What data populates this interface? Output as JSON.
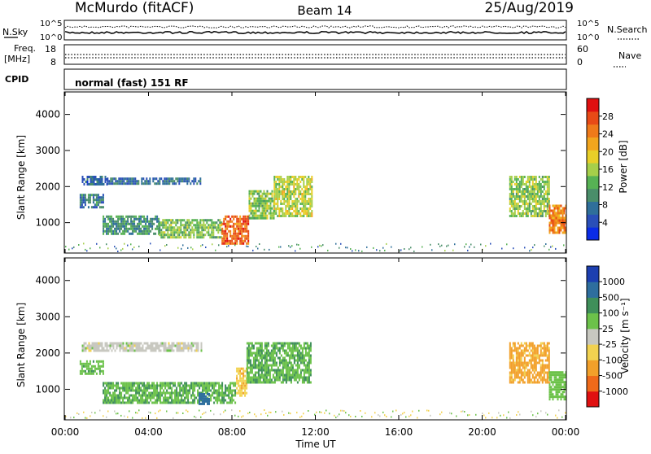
{
  "header": {
    "station": "McMurdo (fitACF)",
    "beam": "Beam 14",
    "date": "25/Aug/2019"
  },
  "noise_panel": {
    "left_label": "N.Sky",
    "right_label": "N.Search",
    "left_ticks": [
      "10^5",
      "10^0"
    ],
    "right_ticks": [
      "10^5",
      "10^0"
    ]
  },
  "freq_panel": {
    "left_label_line1": "Freq.",
    "left_label_line2": "[MHz]",
    "right_label": "Nave",
    "left_ticks": [
      "18",
      "8"
    ],
    "right_ticks": [
      "60",
      "0"
    ]
  },
  "cpid_panel": {
    "label": "CPID",
    "text": "normal (fast) 151 RF"
  },
  "chart_data": [
    {
      "type": "heatmap",
      "ylabel": "Slant Range [km]",
      "xlabel": "",
      "ylim": [
        180,
        4600
      ],
      "yticks": [
        "1000",
        "2000",
        "3000",
        "4000"
      ],
      "colorbar": {
        "label": "Power [dB]",
        "ticks": [
          "4",
          "8",
          "12",
          "16",
          "20",
          "24",
          "28"
        ],
        "colors": [
          "#0a2ce6",
          "#2a4fb8",
          "#2f6f9a",
          "#4a8e6a",
          "#57b254",
          "#a6cf4a",
          "#e8cf28",
          "#f2a51e",
          "#ef7a1a",
          "#e84a16",
          "#e01010"
        ],
        "range": [
          0,
          32
        ]
      },
      "echo_regions": [
        {
          "t_start": 0.8,
          "t_end": 2.0,
          "r_min": 2050,
          "r_max": 2300,
          "value": 6
        },
        {
          "t_start": 2.0,
          "t_end": 6.5,
          "r_min": 2050,
          "r_max": 2250,
          "value": 7
        },
        {
          "t_start": 0.7,
          "t_end": 1.8,
          "r_min": 1450,
          "r_max": 1800,
          "value": 8
        },
        {
          "t_start": 1.8,
          "t_end": 4.5,
          "r_min": 700,
          "r_max": 1200,
          "value": 10
        },
        {
          "t_start": 4.5,
          "t_end": 7.5,
          "r_min": 600,
          "r_max": 1100,
          "value": 14
        },
        {
          "t_start": 7.5,
          "t_end": 8.8,
          "r_min": 450,
          "r_max": 1200,
          "value": 26
        },
        {
          "t_start": 8.8,
          "t_end": 10.0,
          "r_min": 1100,
          "r_max": 1900,
          "value": 15
        },
        {
          "t_start": 10.0,
          "t_end": 11.8,
          "r_min": 1200,
          "r_max": 2300,
          "value": 17
        },
        {
          "t_start": 21.3,
          "t_end": 23.2,
          "r_min": 1200,
          "r_max": 2300,
          "value": 15
        },
        {
          "t_start": 23.2,
          "t_end": 24.0,
          "r_min": 700,
          "r_max": 1500,
          "value": 24
        }
      ]
    },
    {
      "type": "heatmap",
      "ylabel": "Slant Range [km]",
      "xlabel": "Time UT",
      "xticks": [
        "00:00",
        "04:00",
        "08:00",
        "12:00",
        "16:00",
        "20:00",
        "00:00"
      ],
      "xlim": [
        0,
        24
      ],
      "ylim": [
        180,
        4600
      ],
      "yticks": [
        "1000",
        "2000",
        "3000",
        "4000"
      ],
      "colorbar": {
        "label": "Velocity [m s⁻¹]",
        "ticks": [
          "1000",
          "500",
          "100",
          "25",
          "-25",
          "-100",
          "-500",
          "-1000"
        ],
        "colors": [
          "#1c3fb0",
          "#2e6e9e",
          "#3f8f5a",
          "#6cc24a",
          "#c8c8c0",
          "#f2d250",
          "#f2a02a",
          "#ef6a1a",
          "#e01010"
        ]
      },
      "echo_regions": [
        {
          "t_start": 0.8,
          "t_end": 6.5,
          "r_min": 2050,
          "r_max": 2300,
          "value": 0
        },
        {
          "t_start": 0.7,
          "t_end": 1.8,
          "r_min": 1450,
          "r_max": 1800,
          "value": 80
        },
        {
          "t_start": 1.8,
          "t_end": 8.2,
          "r_min": 600,
          "r_max": 1200,
          "value": 90
        },
        {
          "t_start": 6.4,
          "t_end": 6.9,
          "r_min": 600,
          "r_max": 900,
          "value": 700
        },
        {
          "t_start": 8.2,
          "t_end": 8.7,
          "r_min": 800,
          "r_max": 1600,
          "value": -80
        },
        {
          "t_start": 8.7,
          "t_end": 11.8,
          "r_min": 1200,
          "r_max": 2300,
          "value": 90
        },
        {
          "t_start": 21.3,
          "t_end": 23.2,
          "r_min": 1200,
          "r_max": 2300,
          "value": -120
        },
        {
          "t_start": 23.2,
          "t_end": 24.0,
          "r_min": 700,
          "r_max": 1500,
          "value": 60
        }
      ]
    }
  ]
}
